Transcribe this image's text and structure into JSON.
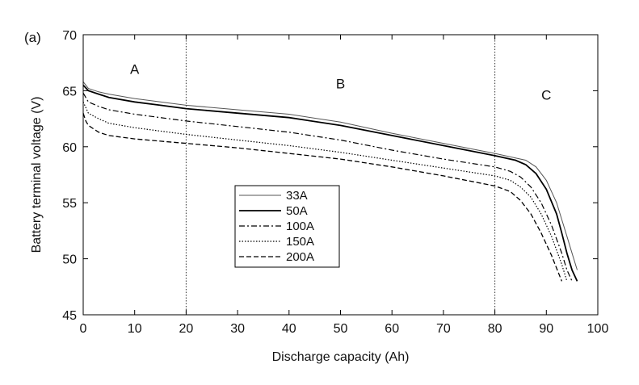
{
  "chart_data": {
    "type": "line",
    "panel_label": "(a)",
    "xlabel": "Discharge capacity (Ah)",
    "ylabel": "Battery terminal voltage (V)",
    "xlim": [
      0,
      100
    ],
    "ylim": [
      45,
      70
    ],
    "xticks": [
      0,
      10,
      20,
      30,
      40,
      50,
      60,
      70,
      80,
      90,
      100
    ],
    "yticks": [
      45,
      50,
      55,
      60,
      65,
      70
    ],
    "grid": false,
    "legend_position": "lower-left",
    "vlines": [
      20,
      80
    ],
    "region_labels": [
      {
        "text": "A",
        "x": 10,
        "y": 66.5
      },
      {
        "text": "B",
        "x": 50,
        "y": 65.2
      },
      {
        "text": "C",
        "x": 90,
        "y": 64.2
      }
    ],
    "series": [
      {
        "name": "33A",
        "dash": "solid-thin",
        "x": [
          0,
          1,
          3,
          5,
          10,
          15,
          20,
          30,
          40,
          50,
          60,
          70,
          80,
          84,
          86,
          88,
          90,
          92,
          93,
          94,
          95,
          96
        ],
        "y": [
          65.8,
          65.2,
          64.9,
          64.7,
          64.3,
          64.0,
          63.7,
          63.3,
          62.9,
          62.2,
          61.2,
          60.3,
          59.4,
          59.0,
          58.8,
          58.2,
          57.0,
          55.0,
          53.5,
          52.0,
          50.5,
          49.0
        ]
      },
      {
        "name": "50A",
        "dash": "solid-thick",
        "x": [
          0,
          1,
          3,
          5,
          10,
          15,
          20,
          30,
          40,
          50,
          60,
          70,
          80,
          84,
          86,
          88,
          90,
          92,
          93,
          94,
          95,
          96
        ],
        "y": [
          65.5,
          65.0,
          64.7,
          64.4,
          64.0,
          63.7,
          63.4,
          63.0,
          62.6,
          61.9,
          61.0,
          60.1,
          59.2,
          58.8,
          58.4,
          57.6,
          56.2,
          54.0,
          52.3,
          50.5,
          49.0,
          48.0
        ]
      },
      {
        "name": "100A",
        "dash": "dash-dot",
        "x": [
          0,
          1,
          3,
          5,
          10,
          15,
          20,
          30,
          40,
          50,
          60,
          70,
          80,
          83,
          85,
          87,
          89,
          91,
          93,
          94,
          95
        ],
        "y": [
          64.8,
          64.0,
          63.6,
          63.3,
          62.9,
          62.6,
          62.3,
          61.8,
          61.3,
          60.6,
          59.7,
          58.9,
          58.2,
          57.8,
          57.3,
          56.4,
          55.0,
          53.0,
          50.5,
          49.0,
          48.0
        ]
      },
      {
        "name": "150A",
        "dash": "dotted",
        "x": [
          0,
          1,
          3,
          5,
          10,
          15,
          20,
          30,
          40,
          50,
          60,
          70,
          80,
          83,
          85,
          87,
          89,
          91,
          93,
          94
        ],
        "y": [
          64.0,
          63.0,
          62.5,
          62.1,
          61.7,
          61.4,
          61.1,
          60.6,
          60.1,
          59.5,
          58.8,
          58.1,
          57.4,
          57.0,
          56.4,
          55.5,
          54.0,
          52.0,
          49.5,
          48.0
        ]
      },
      {
        "name": "200A",
        "dash": "dashed",
        "x": [
          0,
          0.5,
          1,
          3,
          5,
          10,
          15,
          20,
          30,
          40,
          50,
          60,
          70,
          80,
          83,
          85,
          87,
          89,
          91,
          93
        ],
        "y": [
          63.0,
          62.3,
          61.9,
          61.3,
          61.0,
          60.7,
          60.5,
          60.3,
          59.9,
          59.4,
          58.9,
          58.2,
          57.4,
          56.5,
          56.0,
          55.2,
          54.0,
          52.3,
          50.3,
          48.0
        ]
      }
    ]
  }
}
